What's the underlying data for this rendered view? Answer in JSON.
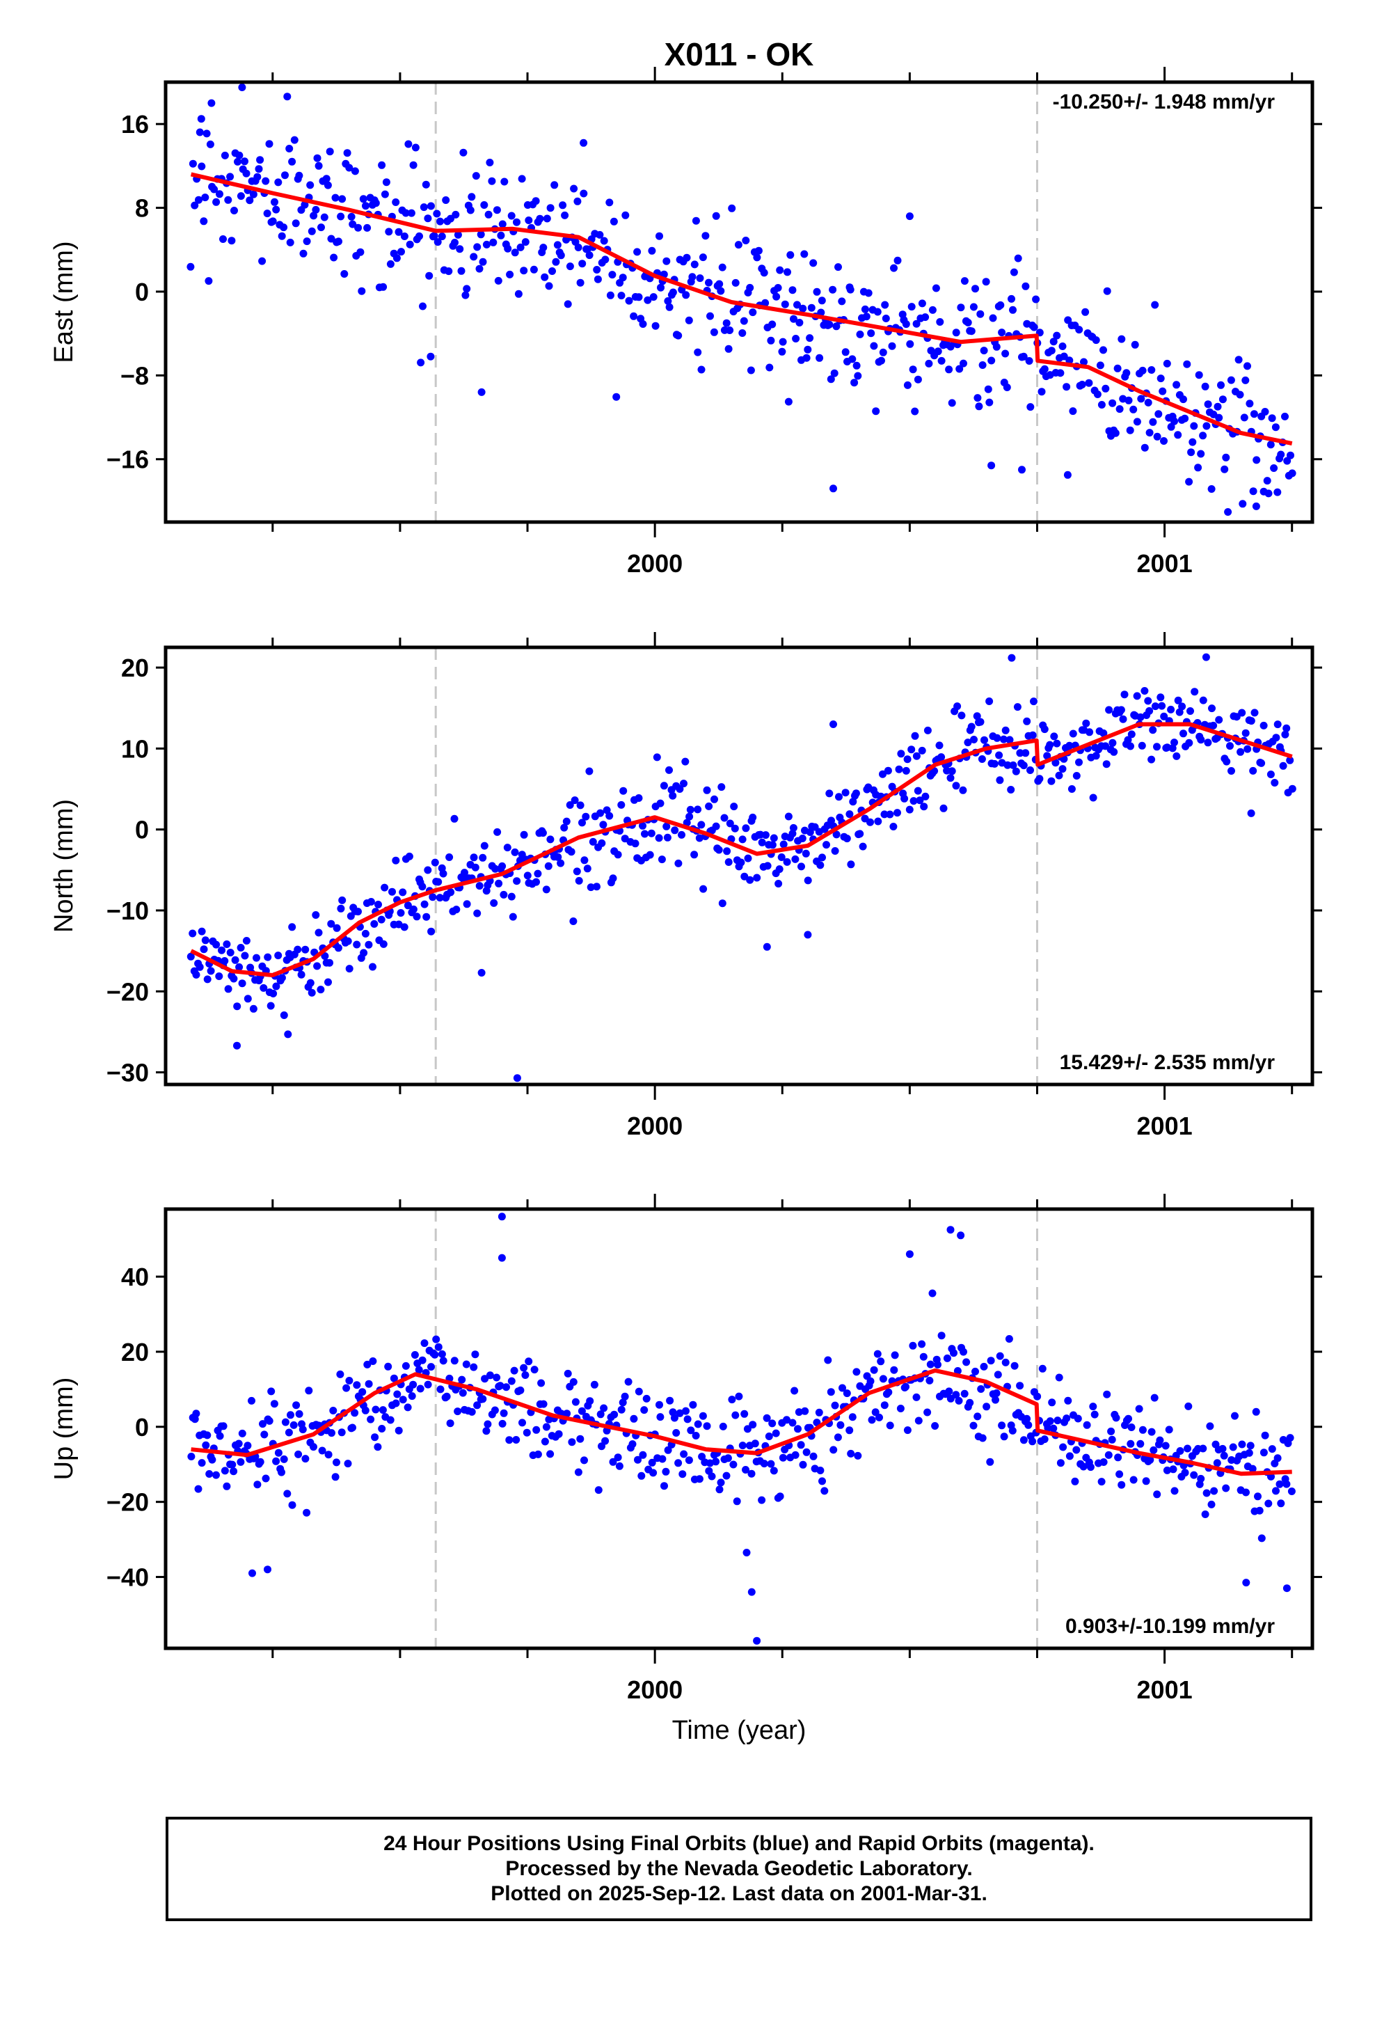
{
  "title": "X011 - OK",
  "xlabel": "Time (year)",
  "footer": {
    "line1": "24 Hour Positions Using Final Orbits (blue) and Rapid Orbits (magenta).",
    "line2": "Processed by the Nevada Geodetic Laboratory.",
    "line3": "Plotted on 2025-Sep-12. Last data on 2001-Mar-31."
  },
  "colors": {
    "points": "#0000ff",
    "fit": "#ff0000",
    "events": "#c8c8c8",
    "frame": "#000000"
  },
  "chart_data": [
    {
      "type": "scatter",
      "component": "East",
      "ylabel": "East (mm)",
      "rate": "-10.250+/- 1.948 mm/yr",
      "rate_position": "top-right",
      "xlim": [
        1999.04,
        2001.29
      ],
      "ylim": [
        -22.0,
        20.0
      ],
      "yticks": [
        -16,
        -8,
        0,
        8,
        16
      ],
      "xticks_labeled": [
        2000,
        2001
      ],
      "xticks_minor": [
        1999.25,
        1999.5,
        1999.75,
        2000.25,
        2000.5,
        2000.75,
        2001.25
      ],
      "events": [
        1999.57,
        2000.75
      ],
      "start": 1999.09,
      "end": 2001.25,
      "fit_x": [
        1999.09,
        1999.25,
        1999.4,
        1999.57,
        1999.72,
        1999.85,
        2000.0,
        2000.15,
        2000.3,
        2000.45,
        2000.6,
        2000.749
      ],
      "fit_y": [
        11.2,
        9.4,
        7.8,
        5.8,
        6.0,
        5.2,
        1.5,
        -1.0,
        -2.2,
        -3.5,
        -4.8,
        -4.2
      ],
      "fit_x2": [
        2000.751,
        2000.85,
        2000.95,
        2001.05,
        2001.15,
        2001.25
      ],
      "fit_y2": [
        -6.6,
        -7.2,
        -9.5,
        -11.5,
        -13.5,
        -14.5
      ],
      "scatter_sd": 3.2,
      "outliers": [
        [
          1999.11,
          16.5
        ],
        [
          1999.13,
          18.0
        ],
        [
          1999.19,
          19.5
        ],
        [
          1999.56,
          -6.2
        ],
        [
          1999.66,
          -9.6
        ],
        [
          1999.86,
          14.2
        ],
        [
          2000.35,
          -18.8
        ],
        [
          2000.5,
          7.2
        ],
        [
          2000.66,
          -16.6
        ],
        [
          2000.72,
          -17.0
        ],
        [
          2000.81,
          -17.5
        ],
        [
          2001.18,
          -20.5
        ]
      ]
    },
    {
      "type": "scatter",
      "component": "North",
      "ylabel": "North (mm)",
      "rate": "15.429+/- 2.535 mm/yr",
      "rate_position": "bottom-right",
      "xlim": [
        1999.04,
        2001.29
      ],
      "ylim": [
        -31.5,
        22.5
      ],
      "yticks": [
        -30,
        -20,
        -10,
        0,
        10,
        20
      ],
      "xticks_labeled": [
        2000,
        2001
      ],
      "xticks_minor": [
        1999.25,
        1999.5,
        1999.75,
        2000.25,
        2000.5,
        2000.75,
        2001.25
      ],
      "events": [
        1999.57,
        2000.75
      ],
      "start": 1999.09,
      "end": 2001.25,
      "fit_x": [
        1999.09,
        1999.17,
        1999.25,
        1999.33,
        1999.42,
        1999.5,
        1999.57,
        1999.7,
        1999.85,
        2000.0,
        2000.1,
        2000.2,
        2000.3,
        2000.42,
        2000.55,
        2000.65,
        2000.749
      ],
      "fit_y": [
        -15.0,
        -17.5,
        -18.0,
        -16.0,
        -11.5,
        -9.0,
        -7.5,
        -5.5,
        -1.0,
        1.5,
        -0.5,
        -3.0,
        -2.0,
        2.5,
        8.0,
        10.0,
        11.0
      ],
      "fit_x2": [
        2000.751,
        2000.85,
        2000.95,
        2001.05,
        2001.15,
        2001.25
      ],
      "fit_y2": [
        8.0,
        10.5,
        13.0,
        13.0,
        11.0,
        9.0
      ],
      "scatter_sd": 2.6,
      "outliers": [
        [
          1999.18,
          -26.7
        ],
        [
          1999.28,
          -25.3
        ],
        [
          1999.73,
          -30.7
        ],
        [
          1999.66,
          -17.7
        ],
        [
          2000.22,
          -14.5
        ],
        [
          2000.3,
          -13.0
        ],
        [
          2000.35,
          13.0
        ],
        [
          2000.7,
          21.2
        ],
        [
          2001.17,
          2.0
        ]
      ]
    },
    {
      "type": "scatter",
      "component": "Up",
      "ylabel": "Up (mm)",
      "rate": "0.903+/-10.199 mm/yr",
      "rate_position": "bottom-right",
      "xlim": [
        1999.04,
        2001.29
      ],
      "ylim": [
        -59.0,
        58.0
      ],
      "yticks": [
        -40,
        -20,
        0,
        20,
        40
      ],
      "xticks_labeled": [
        2000,
        2001
      ],
      "xticks_minor": [
        1999.25,
        1999.5,
        1999.75,
        2000.25,
        2000.5,
        2000.75,
        2001.25
      ],
      "events": [
        1999.57,
        2000.75
      ],
      "start": 1999.09,
      "end": 2001.25,
      "fit_x": [
        1999.09,
        1999.2,
        1999.33,
        1999.45,
        1999.53,
        1999.65,
        1999.8,
        2000.0,
        2000.1,
        2000.2,
        2000.3,
        2000.42,
        2000.55,
        2000.65,
        2000.749
      ],
      "fit_y": [
        -6.0,
        -7.5,
        -2.0,
        9.0,
        14.0,
        10.0,
        3.0,
        -2.5,
        -6.0,
        -7.0,
        -2.0,
        9.0,
        15.0,
        12.0,
        6.0
      ],
      "fit_x2": [
        2000.751,
        2000.85,
        2000.95,
        2001.05,
        2001.15,
        2001.25
      ],
      "fit_y2": [
        -1.0,
        -4.0,
        -7.0,
        -9.5,
        -12.5,
        -12.0
      ],
      "scatter_sd": 6.5,
      "outliers": [
        [
          1999.21,
          -39.0
        ],
        [
          1999.24,
          -38.0
        ],
        [
          1999.7,
          56.0
        ],
        [
          1999.7,
          45.0
        ],
        [
          2000.18,
          -33.5
        ],
        [
          2000.19,
          -44.0
        ],
        [
          2000.2,
          -57.0
        ],
        [
          2000.5,
          46.0
        ],
        [
          2000.58,
          52.5
        ],
        [
          2000.6,
          51.0
        ],
        [
          2001.16,
          -41.5
        ],
        [
          2001.24,
          -43.0
        ]
      ]
    }
  ]
}
